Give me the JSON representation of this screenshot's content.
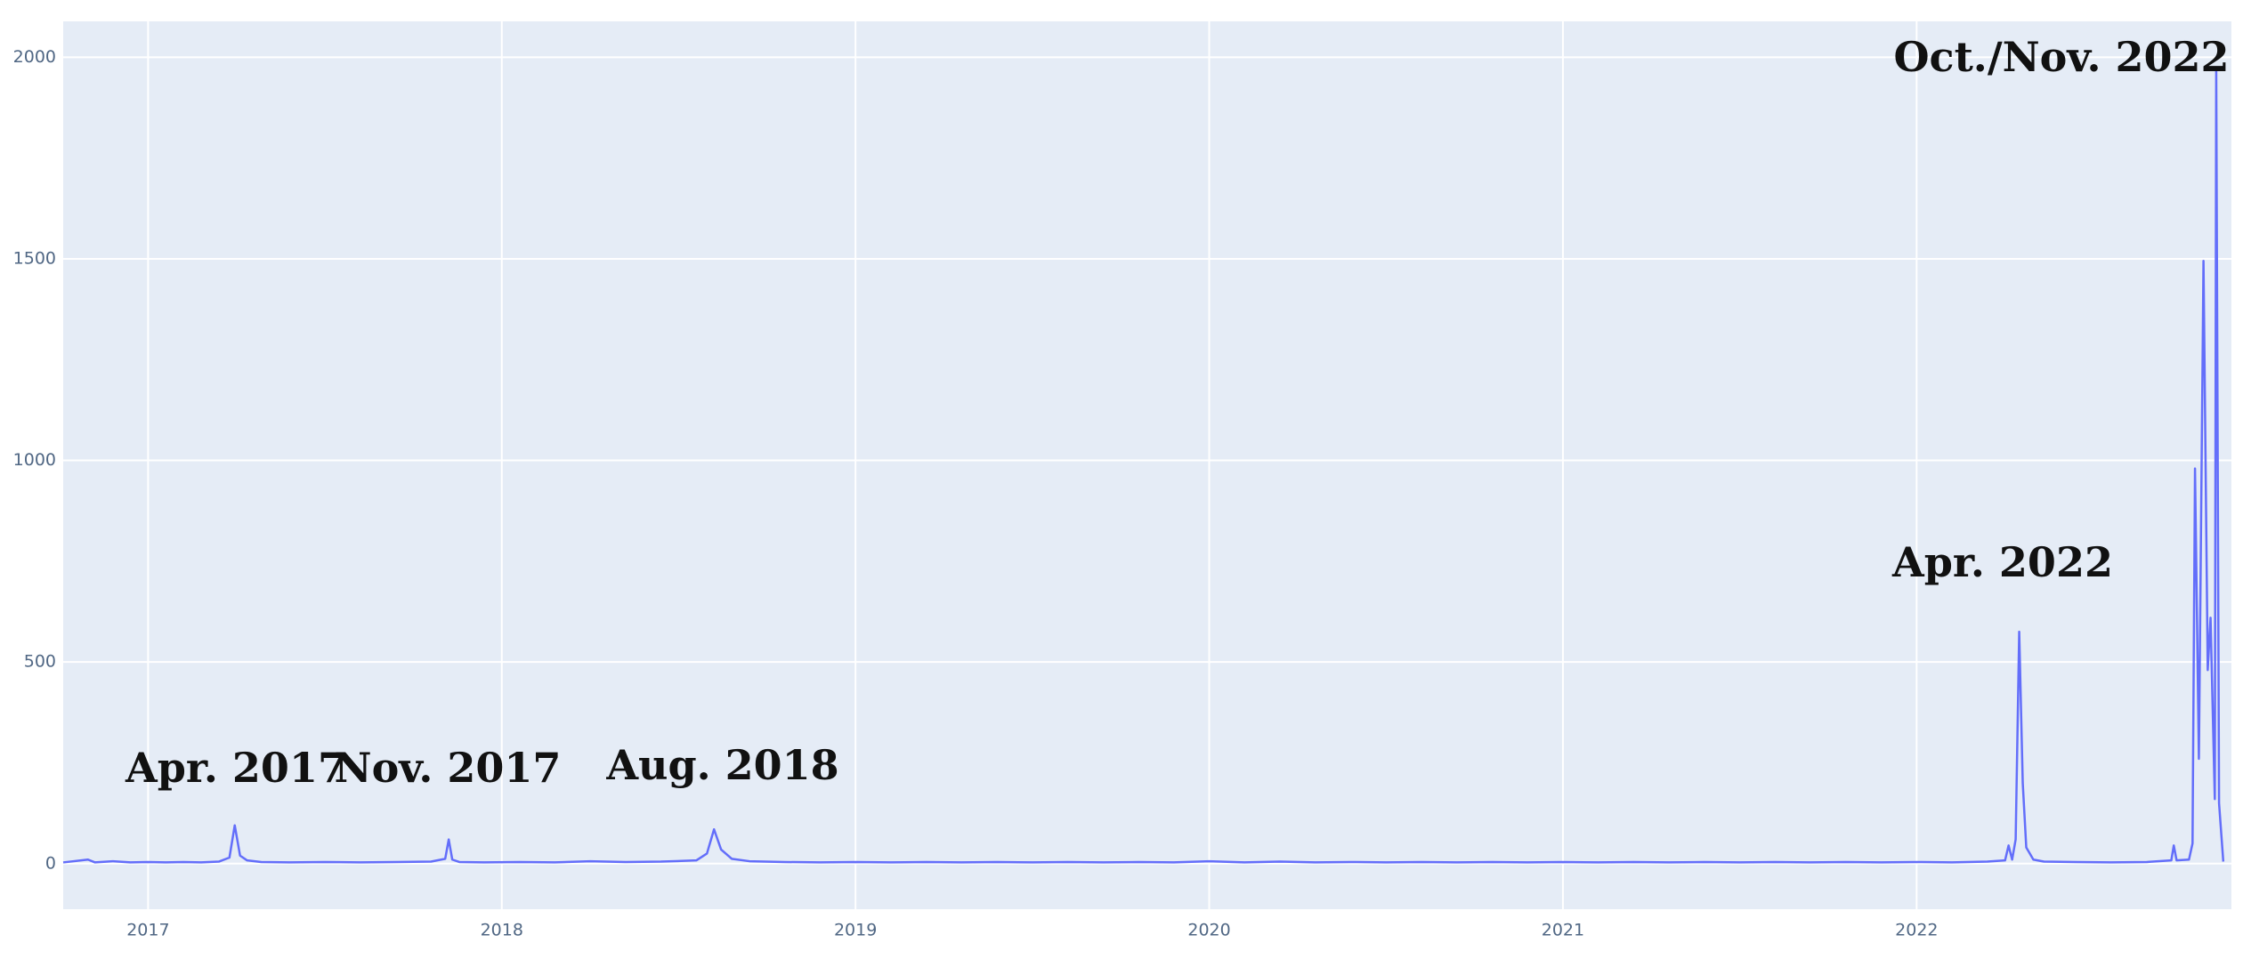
{
  "chart_data": {
    "type": "line",
    "color": "#636efa",
    "grid": true,
    "background": "#e5ecf6",
    "x": [
      2016.76,
      2016.83,
      2016.85,
      2016.9,
      2016.95,
      2017.0,
      2017.05,
      2017.1,
      2017.15,
      2017.2,
      2017.23,
      2017.245,
      2017.26,
      2017.28,
      2017.32,
      2017.4,
      2017.5,
      2017.6,
      2017.7,
      2017.8,
      2017.84,
      2017.85,
      2017.86,
      2017.88,
      2017.95,
      2018.05,
      2018.15,
      2018.25,
      2018.35,
      2018.45,
      2018.55,
      2018.58,
      2018.6,
      2018.62,
      2018.65,
      2018.7,
      2018.8,
      2018.9,
      2019.0,
      2019.1,
      2019.2,
      2019.3,
      2019.4,
      2019.5,
      2019.6,
      2019.7,
      2019.8,
      2019.9,
      2020.0,
      2020.1,
      2020.2,
      2020.3,
      2020.4,
      2020.5,
      2020.6,
      2020.7,
      2020.8,
      2020.9,
      2021.0,
      2021.1,
      2021.2,
      2021.3,
      2021.4,
      2021.5,
      2021.6,
      2021.7,
      2021.8,
      2021.9,
      2022.0,
      2022.1,
      2022.2,
      2022.25,
      2022.26,
      2022.27,
      2022.28,
      2022.29,
      2022.3,
      2022.31,
      2022.33,
      2022.36,
      2022.45,
      2022.55,
      2022.65,
      2022.72,
      2022.727,
      2022.735,
      2022.77,
      2022.78,
      2022.787,
      2022.798,
      2022.811,
      2022.823,
      2022.831,
      2022.843,
      2022.847,
      2022.855,
      2022.867
    ],
    "values": [
      3,
      10,
      3,
      6,
      3,
      4,
      3,
      4,
      3,
      5,
      15,
      95,
      20,
      8,
      4,
      3,
      4,
      3,
      4,
      5,
      12,
      60,
      10,
      4,
      3,
      4,
      3,
      6,
      4,
      5,
      8,
      25,
      85,
      35,
      12,
      6,
      4,
      3,
      4,
      3,
      4,
      3,
      4,
      3,
      4,
      3,
      4,
      3,
      6,
      3,
      5,
      3,
      4,
      3,
      4,
      3,
      4,
      3,
      4,
      3,
      4,
      3,
      4,
      3,
      4,
      3,
      4,
      3,
      4,
      3,
      5,
      8,
      45,
      10,
      60,
      575,
      200,
      40,
      10,
      5,
      4,
      3,
      4,
      8,
      45,
      8,
      10,
      50,
      980,
      260,
      1495,
      480,
      610,
      160,
      1970,
      150,
      5
    ],
    "xlim": [
      2016.76,
      2022.89
    ],
    "xticks": [
      2017,
      2018,
      2019,
      2020,
      2021,
      2022
    ],
    "ylim": [
      -113,
      2089
    ],
    "yticks": [
      0,
      500,
      1000,
      1500,
      2000
    ],
    "annotations": [
      "Apr. 2017",
      "Nov. 2017",
      "Aug. 2018",
      "Apr. 2022",
      "Oct./Nov. 2022"
    ]
  }
}
